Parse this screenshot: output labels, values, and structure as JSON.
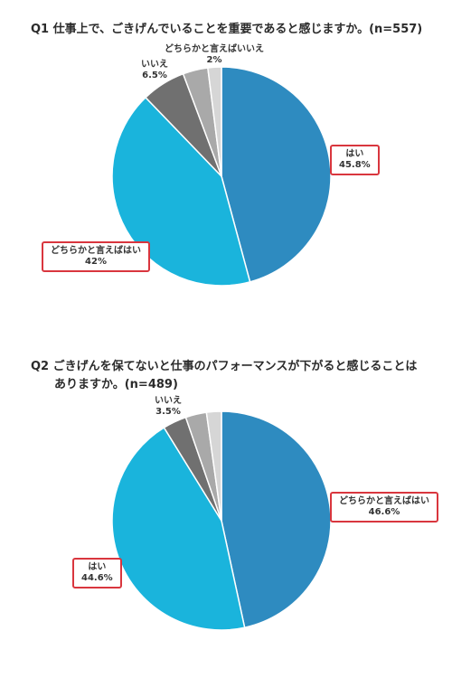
{
  "q1": {
    "title": "Q1 仕事上で、ごきげんでいることを重要であると感じますか。(n=557)"
  },
  "q2": {
    "title_line1": "Q2 ごきげんを保てないと仕事のパフォーマンスが下がると感じることは",
    "title_line2": "ありますか。(n=489)"
  },
  "chart_data": [
    {
      "type": "pie",
      "title": "Q1 仕事上で、ごきげんでいることを重要であると感じますか。(n=557)",
      "slices": [
        {
          "label": "はい",
          "value": 45.8,
          "value_text": "45.8%",
          "color": "#2e8bc0"
        },
        {
          "label": "どちらかと言えばはい",
          "value": 42,
          "value_text": "42%",
          "color": "#1ab4dc"
        },
        {
          "label": "いいえ",
          "value": 6.5,
          "value_text": "6.5%",
          "color": "#707070"
        },
        {
          "label": "",
          "value": 3.7,
          "value_text": "",
          "color": "#a9a9a9"
        },
        {
          "label": "どちらかと言えばいいえ",
          "value": 2,
          "value_text": "2%",
          "color": "#d6d6d6"
        }
      ],
      "start_angle": "12 o'clock",
      "direction": "clockwise",
      "legend": "none"
    },
    {
      "type": "pie",
      "title": "Q2 ごきげんを保てないと仕事のパフォーマンスが下がると感じることは ありますか。(n=489)",
      "slices": [
        {
          "label": "どちらかと言えばはい",
          "value": 46.6,
          "value_text": "46.6%",
          "color": "#2e8bc0"
        },
        {
          "label": "はい",
          "value": 44.6,
          "value_text": "44.6%",
          "color": "#1ab4dc"
        },
        {
          "label": "いいえ",
          "value": 3.5,
          "value_text": "3.5%",
          "color": "#707070"
        },
        {
          "label": "",
          "value": 3.1,
          "value_text": "",
          "color": "#a9a9a9"
        },
        {
          "label": "",
          "value": 2.2,
          "value_text": "",
          "color": "#d6d6d6"
        }
      ],
      "start_angle": "12 o'clock",
      "direction": "clockwise",
      "legend": "none"
    }
  ]
}
